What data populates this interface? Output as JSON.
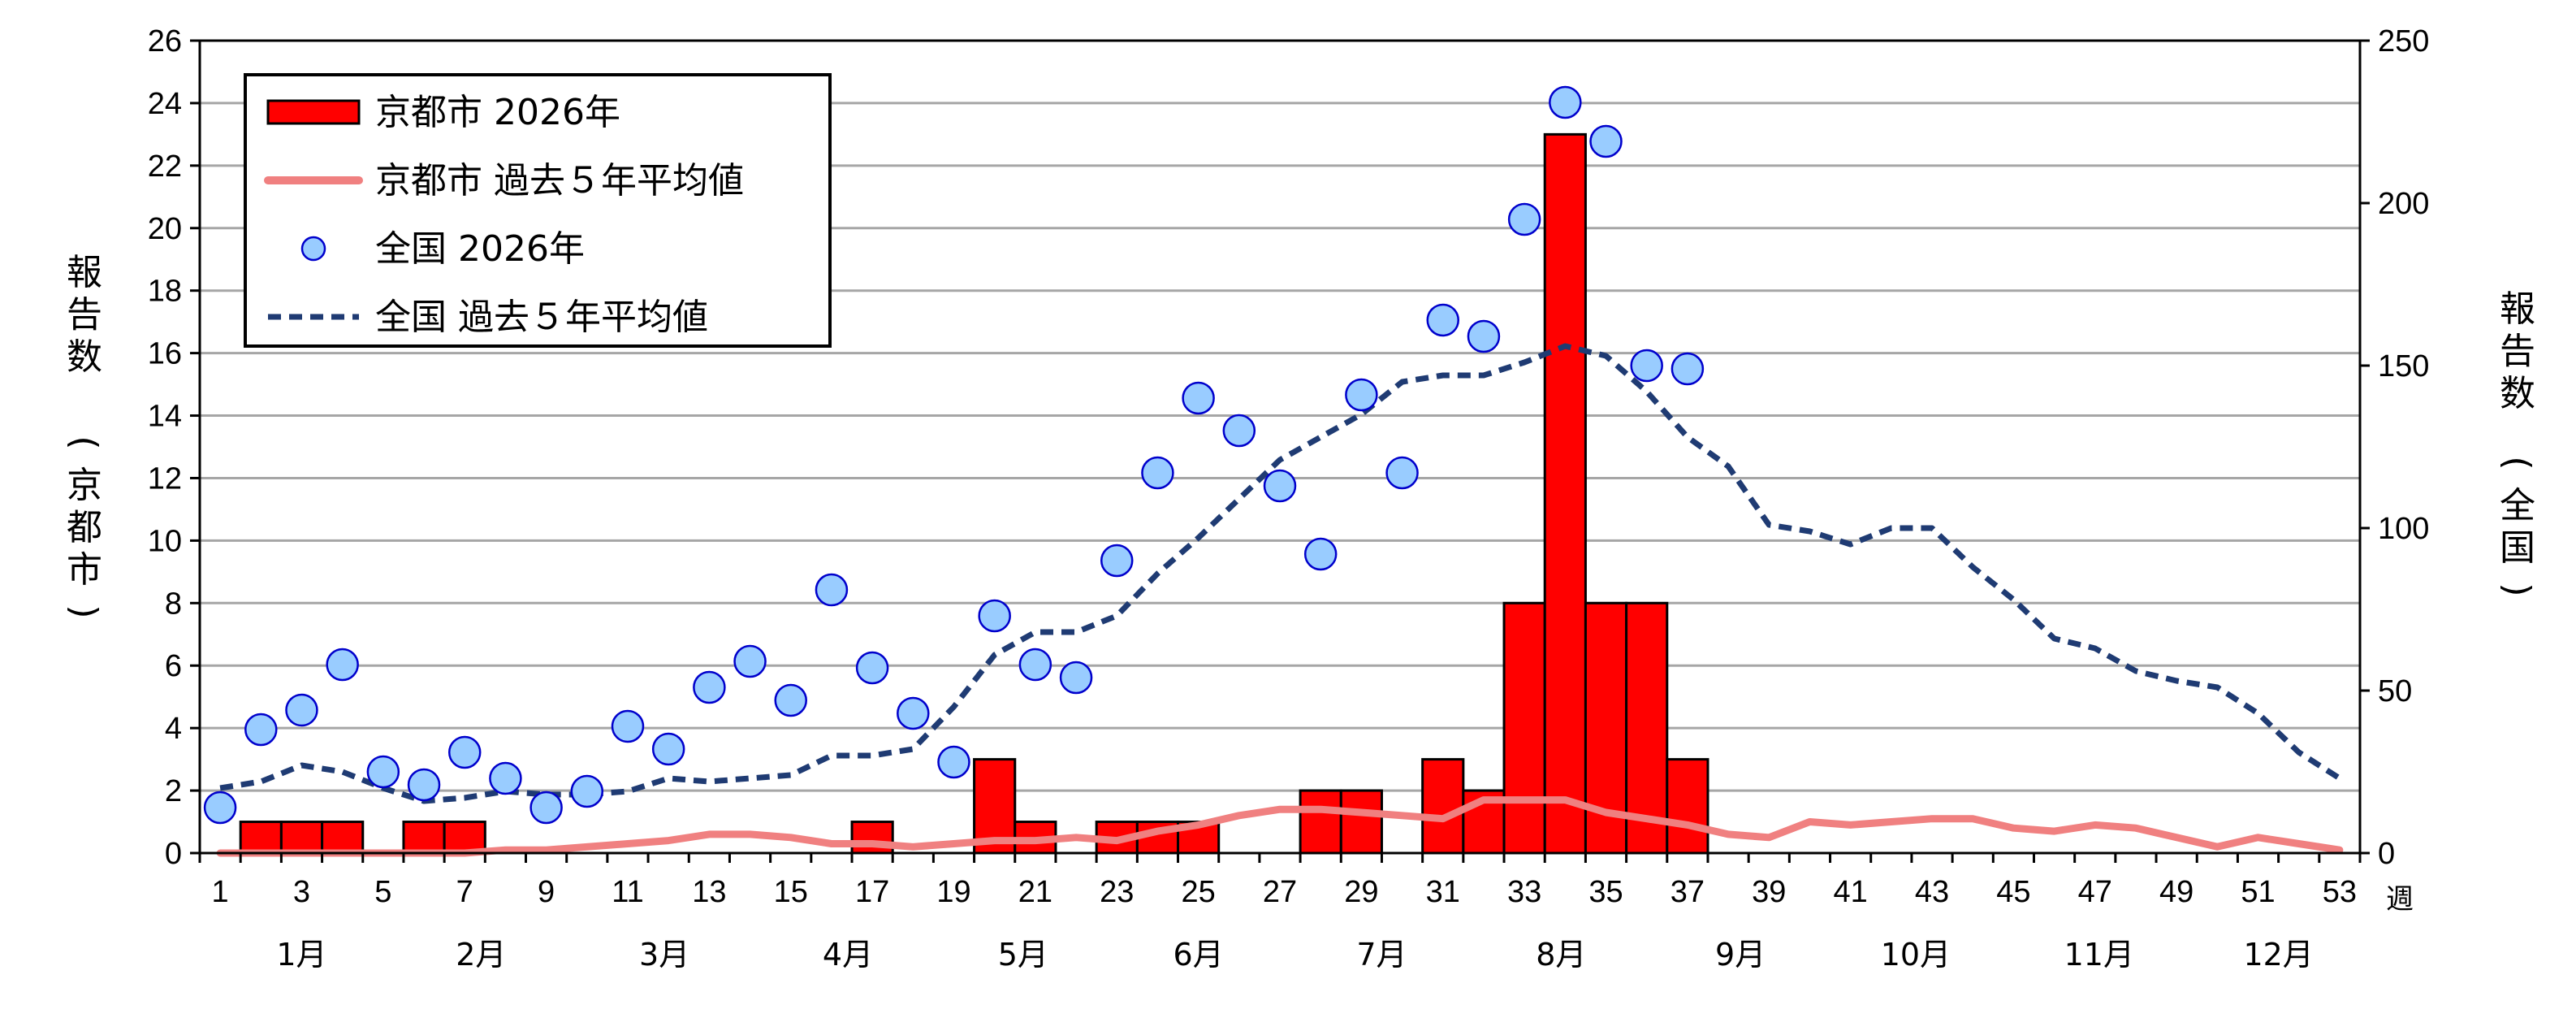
{
  "chart_data": {
    "type": "bar",
    "x_unit_label": "週",
    "x_ticks": [
      1,
      3,
      5,
      7,
      9,
      11,
      13,
      15,
      17,
      19,
      21,
      23,
      25,
      27,
      29,
      31,
      33,
      35,
      37,
      39,
      41,
      43,
      45,
      47,
      49,
      51,
      53
    ],
    "months": [
      "1月",
      "2月",
      "3月",
      "4月",
      "5月",
      "6月",
      "7月",
      "8月",
      "9月",
      "10月",
      "11月",
      "12月"
    ],
    "y_left": {
      "label_top": "報告数",
      "label_bottom": "京都市",
      "lim": [
        0,
        26
      ],
      "ticks": [
        0,
        2,
        4,
        6,
        8,
        10,
        12,
        14,
        16,
        18,
        20,
        22,
        24,
        26
      ]
    },
    "y_right": {
      "label_top": "報告数",
      "label_bottom": "全国",
      "lim": [
        0,
        250
      ],
      "ticks": [
        0,
        50,
        100,
        150,
        200,
        250
      ]
    },
    "grid": true,
    "legend_position": "top-left",
    "series": [
      {
        "name": "京都市 2026年",
        "kind": "bar",
        "axis": "left",
        "color": "#ff0000",
        "x": [
          2,
          3,
          4,
          6,
          7,
          17,
          20,
          21,
          23,
          24,
          25,
          28,
          29,
          31,
          32,
          33,
          34,
          35,
          36,
          37
        ],
        "values": [
          1,
          1,
          1,
          1,
          1,
          1,
          3,
          1,
          1,
          1,
          1,
          2,
          2,
          3,
          2,
          8,
          23,
          8,
          8,
          3
        ]
      },
      {
        "name": "京都市 過去５年平均値",
        "kind": "line",
        "axis": "left",
        "color": "#f08080",
        "x": [
          1,
          2,
          3,
          4,
          5,
          6,
          7,
          8,
          9,
          10,
          11,
          12,
          13,
          14,
          15,
          16,
          17,
          18,
          19,
          20,
          21,
          22,
          23,
          24,
          25,
          26,
          27,
          28,
          29,
          30,
          31,
          32,
          33,
          34,
          35,
          36,
          37,
          38,
          39,
          40,
          41,
          42,
          43,
          44,
          45,
          46,
          47,
          48,
          49,
          50,
          51,
          52,
          53
        ],
        "values": [
          0,
          0,
          0,
          0,
          0,
          0,
          0,
          0.1,
          0.1,
          0.2,
          0.3,
          0.4,
          0.6,
          0.6,
          0.5,
          0.3,
          0.3,
          0.2,
          0.3,
          0.4,
          0.4,
          0.5,
          0.4,
          0.7,
          0.9,
          1.2,
          1.4,
          1.4,
          1.3,
          1.2,
          1.1,
          1.7,
          1.7,
          1.7,
          1.3,
          1.1,
          0.9,
          0.6,
          0.5,
          1.0,
          0.9,
          1.0,
          1.1,
          1.1,
          0.8,
          0.7,
          0.9,
          0.8,
          0.5,
          0.2,
          0.5,
          0.3,
          0.1
        ]
      },
      {
        "name": "全国 2026年",
        "kind": "scatter",
        "axis": "right",
        "color": "#99ccff",
        "x": [
          1,
          2,
          3,
          4,
          5,
          6,
          7,
          8,
          9,
          10,
          11,
          12,
          13,
          14,
          15,
          16,
          17,
          18,
          19,
          20,
          21,
          22,
          23,
          24,
          25,
          26,
          27,
          28,
          29,
          30,
          31,
          32,
          33,
          34,
          35,
          36,
          37
        ],
        "values": [
          14,
          38,
          44,
          58,
          25,
          21,
          31,
          23,
          14,
          19,
          39,
          32,
          51,
          59,
          47,
          81,
          57,
          43,
          28,
          73,
          58,
          54,
          90,
          117,
          140,
          130,
          113,
          92,
          141,
          117,
          164,
          159,
          195,
          231,
          219,
          150,
          149
        ]
      },
      {
        "name": "全国 過去５年平均値",
        "kind": "line",
        "axis": "right",
        "color": "#1f3b73",
        "x": [
          1,
          2,
          3,
          4,
          5,
          6,
          7,
          8,
          9,
          10,
          11,
          12,
          13,
          14,
          15,
          16,
          17,
          18,
          19,
          20,
          21,
          22,
          23,
          24,
          25,
          26,
          27,
          28,
          29,
          30,
          31,
          32,
          33,
          34,
          35,
          36,
          37,
          38,
          39,
          40,
          41,
          42,
          43,
          44,
          45,
          46,
          47,
          48,
          49,
          50,
          51,
          52,
          53
        ],
        "values": [
          20,
          22,
          27,
          25,
          20,
          16,
          17,
          19,
          18,
          18,
          19,
          23,
          22,
          23,
          24,
          30,
          30,
          32,
          45,
          61,
          68,
          68,
          73,
          86,
          97,
          109,
          121,
          128,
          135,
          145,
          147,
          147,
          151,
          156,
          153,
          142,
          128,
          119,
          101,
          99,
          95,
          100,
          100,
          88,
          78,
          66,
          63,
          56,
          53,
          51,
          43,
          31,
          23
        ]
      }
    ]
  }
}
